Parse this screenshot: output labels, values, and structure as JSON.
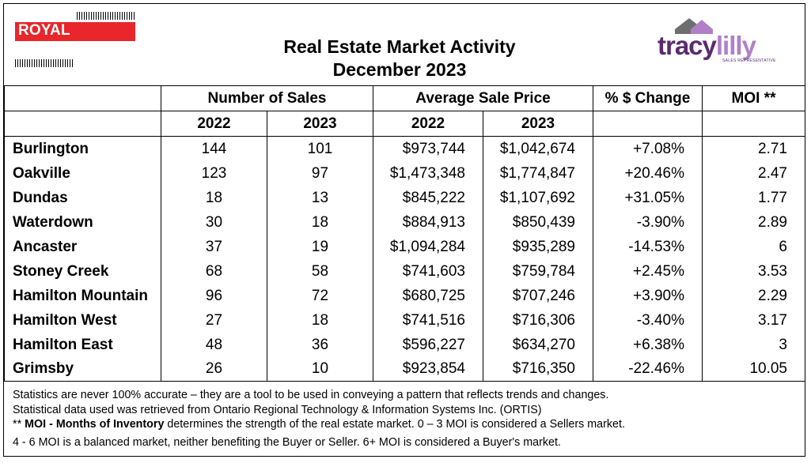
{
  "header": {
    "brand": "ROYAL LEPAGE",
    "title_line1": "Real Estate Market Activity",
    "title_line2": "December 2023",
    "logo_name_1": "tracy",
    "logo_name_2": "lilly",
    "logo_sub": "SALES REPRESENTATIVE",
    "brand_color": "#e8262b",
    "logo_color": "#5a2a6e"
  },
  "table": {
    "group_headers": [
      "Number of Sales",
      "Average Sale Price",
      "% $ Change",
      "MOI **"
    ],
    "year_headers": [
      "2022",
      "2023",
      "2022",
      "2023"
    ],
    "rows": [
      {
        "town": "Burlington",
        "sales_2022": "144",
        "sales_2023": "101",
        "price_2022": "$973,744",
        "price_2023": "$1,042,674",
        "change": "+7.08%",
        "moi": "2.71"
      },
      {
        "town": "Oakville",
        "sales_2022": "123",
        "sales_2023": "97",
        "price_2022": "$1,473,348",
        "price_2023": "$1,774,847",
        "change": "+20.46%",
        "moi": "2.47"
      },
      {
        "town": "Dundas",
        "sales_2022": "18",
        "sales_2023": "13",
        "price_2022": "$845,222",
        "price_2023": "$1,107,692",
        "change": "+31.05%",
        "moi": "1.77"
      },
      {
        "town": "Waterdown",
        "sales_2022": "30",
        "sales_2023": "18",
        "price_2022": "$884,913",
        "price_2023": "$850,439",
        "change": "-3.90%",
        "moi": "2.89"
      },
      {
        "town": "Ancaster",
        "sales_2022": "37",
        "sales_2023": "19",
        "price_2022": "$1,094,284",
        "price_2023": "$935,289",
        "change": "-14.53%",
        "moi": "6"
      },
      {
        "town": "Stoney Creek",
        "sales_2022": "68",
        "sales_2023": "58",
        "price_2022": "$741,603",
        "price_2023": "$759,784",
        "change": "+2.45%",
        "moi": "3.53"
      },
      {
        "town": "Hamilton Mountain",
        "sales_2022": "96",
        "sales_2023": "72",
        "price_2022": "$680,725",
        "price_2023": "$707,246",
        "change": "+3.90%",
        "moi": "2.29"
      },
      {
        "town": "Hamilton West",
        "sales_2022": "27",
        "sales_2023": "18",
        "price_2022": "$741,516",
        "price_2023": "$716,306",
        "change": "-3.40%",
        "moi": "3.17"
      },
      {
        "town": "Hamilton East",
        "sales_2022": "48",
        "sales_2023": "36",
        "price_2022": "$596,227",
        "price_2023": "$634,270",
        "change": "+6.38%",
        "moi": "3"
      },
      {
        "town": "Grimsby",
        "sales_2022": "26",
        "sales_2023": "10",
        "price_2022": "$923,854",
        "price_2023": "$716,350",
        "change": "-22.46%",
        "moi": "10.05"
      }
    ]
  },
  "notes": {
    "line1": "Statistics are never 100% accurate – they are a tool to be used in conveying a pattern that reflects trends and changes.",
    "line2": "Statistical data used was retrieved from Ontario Regional Technology & Information Systems Inc. (ORTIS)",
    "line3_prefix": "** ",
    "line3_bold": "MOI - Months of Inventory",
    "line3_rest": " determines the strength of the real estate market. 0 – 3 MOI is considered a Sellers market.",
    "line4": "4 - 6 MOI is a balanced market, neither benefiting the Buyer or Seller. 6+ MOI is considered a Buyer's market."
  }
}
